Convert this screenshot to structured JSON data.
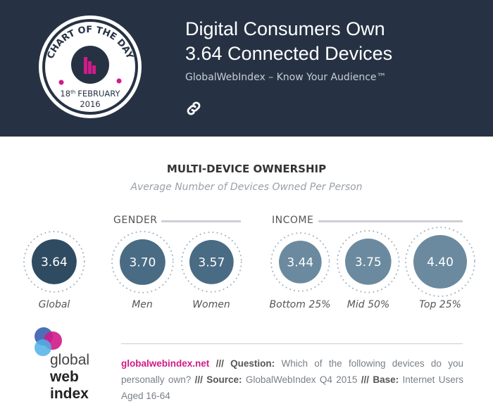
{
  "header": {
    "badge": {
      "text": "CHART OF THE DAY",
      "date_day": "18",
      "date_suffix": "th",
      "date_month": "FEBRUARY",
      "date_year": "2016"
    },
    "title_line1": "Digital Consumers Own",
    "title_line2": "3.64 Connected Devices",
    "subtitle": "GlobalWebIndex – Know Your Audience™",
    "link_icon": "link-icon"
  },
  "chart_data": {
    "type": "bubble",
    "title": "MULTI-DEVICE OWNERSHIP",
    "subtitle": "Average Number of Devices Owned Per Person",
    "groups": [
      "GENDER",
      "INCOME"
    ],
    "categories": [
      "Global",
      "Men",
      "Women",
      "Bottom 25%",
      "Mid 50%",
      "Top 25%"
    ],
    "values": [
      3.64,
      3.7,
      3.57,
      3.44,
      3.75,
      4.4
    ],
    "value_labels": [
      "3.64",
      "3.70",
      "3.57",
      "3.44",
      "3.75",
      "4.40"
    ],
    "colors": [
      "#2f4b61",
      "#4a6b84",
      "#4a6b84",
      "#6b8a9f",
      "#6b8a9f",
      "#6b8a9f"
    ]
  },
  "footer": {
    "site": "globalwebindex.net",
    "sep": " /// ",
    "q_label": "Question:",
    "q_text": " Which of the following devices do you personally own?",
    "s_label": "Source:",
    "s_text": " GlobalWebIndex Q4 2015",
    "b_label": "Base:",
    "b_text": " Internet Users Aged 16-64",
    "logo": {
      "l1": "global",
      "l2": "web",
      "l3": "index"
    }
  }
}
